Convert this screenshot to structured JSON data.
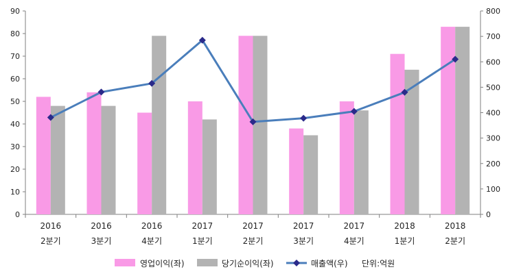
{
  "chart_data": {
    "type": "bar",
    "categories": [
      [
        "2016",
        "2분기"
      ],
      [
        "2016",
        "3분기"
      ],
      [
        "2016",
        "4분기"
      ],
      [
        "2017",
        "1분기"
      ],
      [
        "2017",
        "2분기"
      ],
      [
        "2017",
        "3분기"
      ],
      [
        "2017",
        "4분기"
      ],
      [
        "2018",
        "1분기"
      ],
      [
        "2018",
        "2분기"
      ]
    ],
    "series": [
      {
        "name": "영업이익(좌)",
        "type": "bar",
        "axis": "left",
        "color": "#f99ae6",
        "values": [
          52,
          54,
          45,
          50,
          79,
          38,
          50,
          71,
          83
        ]
      },
      {
        "name": "당기순이익(좌)",
        "type": "bar",
        "axis": "left",
        "color": "#b3b3b3",
        "values": [
          48,
          48,
          79,
          42,
          79,
          35,
          46,
          64,
          83
        ]
      },
      {
        "name": "매출액(우)",
        "type": "line",
        "axis": "right",
        "color": "#4a7ebb",
        "marker_color": "#2a2a8a",
        "values": [
          381,
          481,
          515,
          685,
          364,
          378,
          405,
          480,
          610
        ]
      }
    ],
    "ylim_left": [
      0,
      90
    ],
    "yticks_left": [
      0,
      10,
      20,
      30,
      40,
      50,
      60,
      70,
      80,
      90
    ],
    "ylim_right": [
      0,
      800
    ],
    "yticks_right": [
      0,
      100,
      200,
      300,
      400,
      500,
      600,
      700,
      800
    ],
    "unit_note": "단위:억원",
    "legend_position": "bottom",
    "grid": false
  }
}
